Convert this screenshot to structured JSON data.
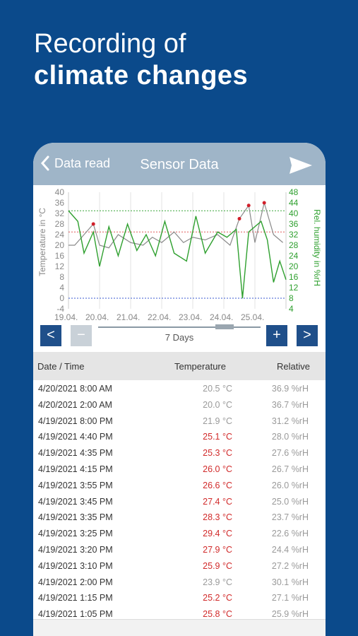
{
  "headline": {
    "line1": "Recording of",
    "line2": "climate changes"
  },
  "navbar": {
    "back_label": "Data read",
    "title": "Sensor Data",
    "back_icon": "chevron-left-icon",
    "share_icon": "send-icon"
  },
  "chart_data": {
    "type": "line",
    "ylabel_left": "Temperature in °C",
    "ylabel_right": "Rel. humidity in %rH",
    "y_left_ticks": [
      "40",
      "36",
      "32",
      "28",
      "24",
      "20",
      "16",
      "12",
      "8",
      "4",
      "0",
      "-4"
    ],
    "y_right_ticks": [
      "48",
      "44",
      "40",
      "36",
      "32",
      "28",
      "24",
      "20",
      "16",
      "12",
      "8",
      "4"
    ],
    "x_ticks": [
      "19.04.",
      "20.04.",
      "21.04.",
      "22.04.",
      "23.04.",
      "24.04.",
      "25.04."
    ],
    "ylim_left": [
      -4,
      40
    ],
    "ylim_right": [
      4,
      48
    ],
    "threshold_temp_high": 25,
    "threshold_temp_low": 0,
    "threshold_humidity": 41,
    "colors": {
      "temperature": "#8a8a8a",
      "temperature_alarm": "#d11f2a",
      "humidity": "#2fa02f",
      "temp_threshold": "#e05a5a",
      "humidity_threshold": "#3aa53a",
      "low_threshold": "#3a5ad0"
    },
    "series": [
      {
        "name": "Temperature",
        "x": [
          0,
          0.2,
          0.5,
          0.8,
          1.0,
          1.3,
          1.6,
          2.0,
          2.4,
          2.7,
          3.0,
          3.4,
          3.7,
          4.0,
          4.4,
          4.8,
          5.2,
          5.5,
          5.8,
          6.0,
          6.3,
          6.6,
          6.9
        ],
        "values": [
          20,
          20,
          24,
          28,
          20,
          19,
          24,
          21,
          20,
          23,
          21,
          25,
          21,
          23,
          22,
          24,
          20,
          30,
          35,
          21,
          36,
          24,
          21
        ]
      },
      {
        "name": "Rel. humidity",
        "x": [
          0,
          0.3,
          0.5,
          0.8,
          1.0,
          1.3,
          1.6,
          1.9,
          2.2,
          2.5,
          2.8,
          3.1,
          3.4,
          3.8,
          4.1,
          4.4,
          4.8,
          5.1,
          5.4,
          5.6,
          5.8,
          6.2,
          6.4,
          6.6,
          6.8,
          7.0
        ],
        "values": [
          41,
          37,
          25,
          33,
          20,
          35,
          24,
          36,
          26,
          32,
          24,
          37,
          25,
          22,
          39,
          25,
          33,
          31,
          34,
          8,
          33,
          37,
          30,
          14,
          22,
          15
        ]
      }
    ]
  },
  "controls": {
    "prev": "<",
    "minus": "−",
    "days": "7 Days",
    "plus": "+",
    "next": ">"
  },
  "table": {
    "headers": {
      "datetime": "Date / Time",
      "temperature": "Temperature",
      "relative": "Relative"
    },
    "rows": [
      {
        "dt": "4/20/2021 8:00 AM",
        "temp": "20.5 °C",
        "rh": "36.9 %rH",
        "alarm": false
      },
      {
        "dt": "4/20/2021 2:00 AM",
        "temp": "20.0 °C",
        "rh": "36.7 %rH",
        "alarm": false
      },
      {
        "dt": "4/19/2021 8:00 PM",
        "temp": "21.9 °C",
        "rh": "31.2 %rH",
        "alarm": false
      },
      {
        "dt": "4/19/2021 4:40 PM",
        "temp": "25.1 °C",
        "rh": "28.0 %rH",
        "alarm": true
      },
      {
        "dt": "4/19/2021 4:35 PM",
        "temp": "25.3 °C",
        "rh": "27.6 %rH",
        "alarm": true
      },
      {
        "dt": "4/19/2021 4:15 PM",
        "temp": "26.0 °C",
        "rh": "26.7 %rH",
        "alarm": true
      },
      {
        "dt": "4/19/2021 3:55 PM",
        "temp": "26.6 °C",
        "rh": "26.0 %rH",
        "alarm": true
      },
      {
        "dt": "4/19/2021 3:45 PM",
        "temp": "27.4 °C",
        "rh": "25.0 %rH",
        "alarm": true
      },
      {
        "dt": "4/19/2021 3:35 PM",
        "temp": "28.3 °C",
        "rh": "23.7 %rH",
        "alarm": true
      },
      {
        "dt": "4/19/2021 3:25 PM",
        "temp": "29.4 °C",
        "rh": "22.6 %rH",
        "alarm": true
      },
      {
        "dt": "4/19/2021 3:20 PM",
        "temp": "27.9 °C",
        "rh": "24.4 %rH",
        "alarm": true
      },
      {
        "dt": "4/19/2021 3:10 PM",
        "temp": "25.9 °C",
        "rh": "27.2 %rH",
        "alarm": true
      },
      {
        "dt": "4/19/2021 2:00 PM",
        "temp": "23.9 °C",
        "rh": "30.1 %rH",
        "alarm": false
      },
      {
        "dt": "4/19/2021 1:15 PM",
        "temp": "25.2 °C",
        "rh": "27.1 %rH",
        "alarm": true
      },
      {
        "dt": "4/19/2021 1:05 PM",
        "temp": "25.8 °C",
        "rh": "25.9 %rH",
        "alarm": true
      }
    ]
  }
}
